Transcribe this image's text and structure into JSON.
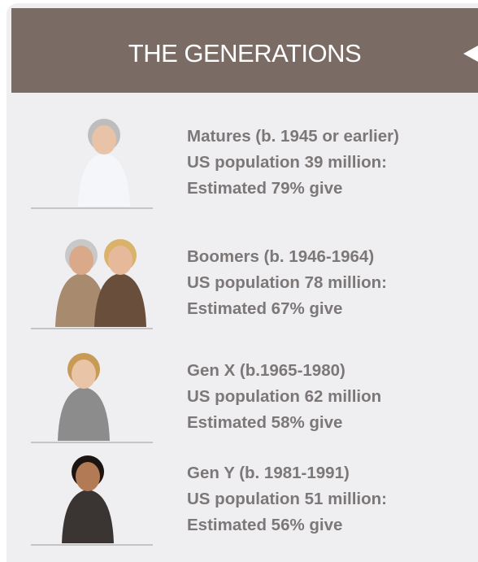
{
  "header": {
    "title": "THE GENERATIONS"
  },
  "generations": [
    {
      "lines": [
        "Matures (b. 1945 or earlier)",
        "US population 39 million:",
        "Estimated 79% give"
      ]
    },
    {
      "lines": [
        "Boomers (b. 1946-1964)",
        "US population 78 million:",
        "Estimated 67% give"
      ]
    },
    {
      "lines": [
        "Gen X (b.1965-1980)",
        "US population 62 million",
        "Estimated 58% give"
      ]
    },
    {
      "lines": [
        "Gen Y (b. 1981-1991)",
        "US population 51 million:",
        "Estimated 56% give"
      ]
    }
  ]
}
